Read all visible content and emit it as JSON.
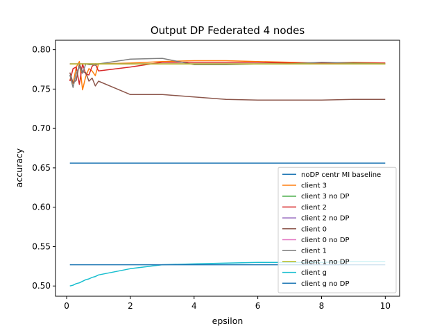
{
  "chart_data": {
    "type": "line",
    "title": "Output DP Federated 4 nodes",
    "xlabel": "epsilon",
    "ylabel": "accuracy",
    "xlim": [
      -0.35,
      10.45
    ],
    "ylim": [
      0.487,
      0.812
    ],
    "xticks": [
      0,
      2,
      4,
      6,
      8,
      10
    ],
    "yticks": [
      0.5,
      0.55,
      0.6,
      0.65,
      0.7,
      0.75,
      0.8
    ],
    "ytick_labels": [
      "0.50",
      "0.55",
      "0.60",
      "0.65",
      "0.70",
      "0.75",
      "0.80"
    ],
    "grid": false,
    "legend_position": "lower-right",
    "series": [
      {
        "name": "noDP centr MI baseline",
        "color": "#1f77b4",
        "x": [
          0.1,
          10
        ],
        "y": [
          0.656,
          0.656
        ]
      },
      {
        "name": "client 3",
        "color": "#ff7f0e",
        "x": [
          0.1,
          0.2,
          0.3,
          0.4,
          0.5,
          0.6,
          0.7,
          0.8,
          0.9,
          1,
          2,
          3,
          4,
          5,
          6,
          7,
          8,
          9,
          10
        ],
        "y": [
          0.763,
          0.757,
          0.778,
          0.785,
          0.749,
          0.766,
          0.776,
          0.773,
          0.767,
          0.782,
          0.783,
          0.785,
          0.786,
          0.786,
          0.785,
          0.784,
          0.783,
          0.784,
          0.783
        ]
      },
      {
        "name": "client 3 no DP",
        "color": "#2ca02c",
        "x": [
          0.1,
          10
        ],
        "y": [
          0.782,
          0.782
        ]
      },
      {
        "name": "client 2",
        "color": "#d62728",
        "x": [
          0.1,
          0.2,
          0.3,
          0.4,
          0.5,
          0.6,
          0.7,
          0.8,
          0.9,
          1,
          2,
          3,
          4,
          5,
          6,
          7,
          8,
          9,
          10
        ],
        "y": [
          0.76,
          0.776,
          0.778,
          0.756,
          0.782,
          0.769,
          0.768,
          0.779,
          0.782,
          0.773,
          0.778,
          0.784,
          0.784,
          0.784,
          0.784,
          0.783,
          0.783,
          0.783,
          0.783
        ]
      },
      {
        "name": "client 2 no DP",
        "color": "#9467bd",
        "x": [
          0.1,
          10
        ],
        "y": [
          0.782,
          0.782
        ]
      },
      {
        "name": "client 0",
        "color": "#8c564b",
        "x": [
          0.1,
          0.2,
          0.3,
          0.4,
          0.5,
          0.6,
          0.7,
          0.8,
          0.9,
          1,
          2,
          3,
          4,
          5,
          6,
          7,
          8,
          9,
          10
        ],
        "y": [
          0.771,
          0.758,
          0.761,
          0.782,
          0.772,
          0.771,
          0.76,
          0.764,
          0.754,
          0.76,
          0.743,
          0.743,
          0.74,
          0.737,
          0.736,
          0.736,
          0.736,
          0.737,
          0.737
        ]
      },
      {
        "name": "client 0 no DP",
        "color": "#e377c2",
        "x": [
          0.1,
          10
        ],
        "y": [
          0.782,
          0.782
        ]
      },
      {
        "name": "client 1",
        "color": "#7f7f7f",
        "x": [
          0.1,
          0.2,
          0.3,
          0.4,
          0.5,
          0.6,
          0.7,
          0.8,
          0.9,
          1,
          2,
          3,
          4,
          5,
          6,
          7,
          8,
          9,
          10
        ],
        "y": [
          0.768,
          0.752,
          0.77,
          0.778,
          0.77,
          0.782,
          0.781,
          0.781,
          0.78,
          0.782,
          0.788,
          0.789,
          0.781,
          0.781,
          0.782,
          0.782,
          0.784,
          0.783,
          0.782
        ]
      },
      {
        "name": "client 1 no DP",
        "color": "#bcbd22",
        "x": [
          0.1,
          10
        ],
        "y": [
          0.782,
          0.782
        ]
      },
      {
        "name": "client g",
        "color": "#17becf",
        "x": [
          0.1,
          0.2,
          0.3,
          0.4,
          0.5,
          0.6,
          0.7,
          0.8,
          0.9,
          1,
          1.5,
          2,
          3,
          4,
          5,
          6,
          7,
          8,
          9,
          10
        ],
        "y": [
          0.5,
          0.501,
          0.503,
          0.504,
          0.506,
          0.508,
          0.509,
          0.511,
          0.512,
          0.514,
          0.518,
          0.522,
          0.527,
          0.528,
          0.529,
          0.53,
          0.53,
          0.53,
          0.531,
          0.531
        ]
      },
      {
        "name": "client g no DP",
        "color": "#1f77b4",
        "x": [
          0.1,
          10
        ],
        "y": [
          0.527,
          0.527
        ]
      }
    ]
  }
}
